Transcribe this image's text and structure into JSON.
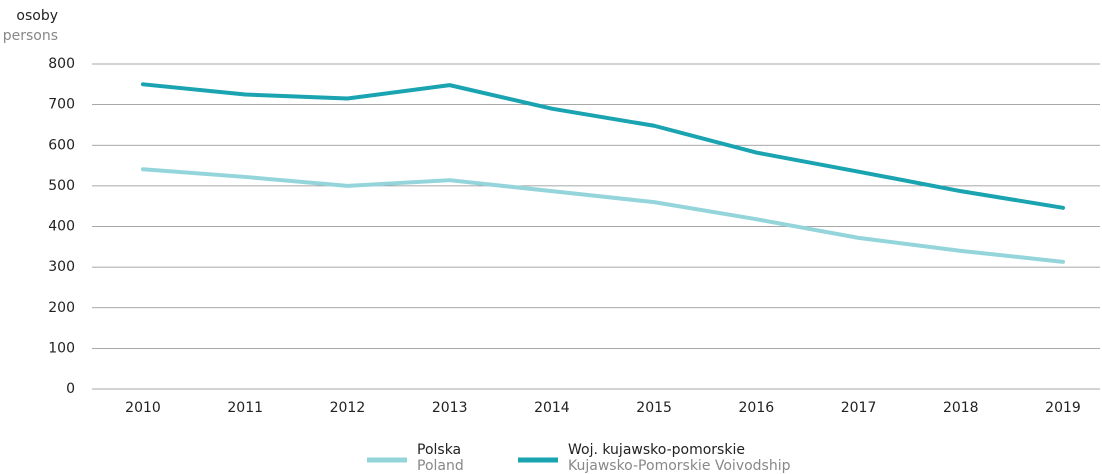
{
  "chart_data": {
    "type": "line",
    "y_label": "osoby",
    "y_label_en": "persons",
    "categories": [
      "2010",
      "2011",
      "2012",
      "2013",
      "2014",
      "2015",
      "2016",
      "2017",
      "2018",
      "2019"
    ],
    "series": [
      {
        "name": "Polska",
        "name_en": "Poland",
        "color": "#93d5db",
        "values": [
          541,
          522,
          500,
          514,
          487,
          460,
          418,
          372,
          340,
          313
        ]
      },
      {
        "name": "Woj. kujawsko-pomorskie",
        "name_en": "Kujawsko-Pomorskie Voivodship",
        "color": "#1aa3b0",
        "values": [
          750,
          725,
          715,
          748,
          690,
          648,
          582,
          535,
          487,
          446
        ]
      }
    ],
    "ylim": [
      0,
      800
    ],
    "yticks": [
      0,
      100,
      200,
      300,
      400,
      500,
      600,
      700,
      800
    ],
    "grid": true
  }
}
